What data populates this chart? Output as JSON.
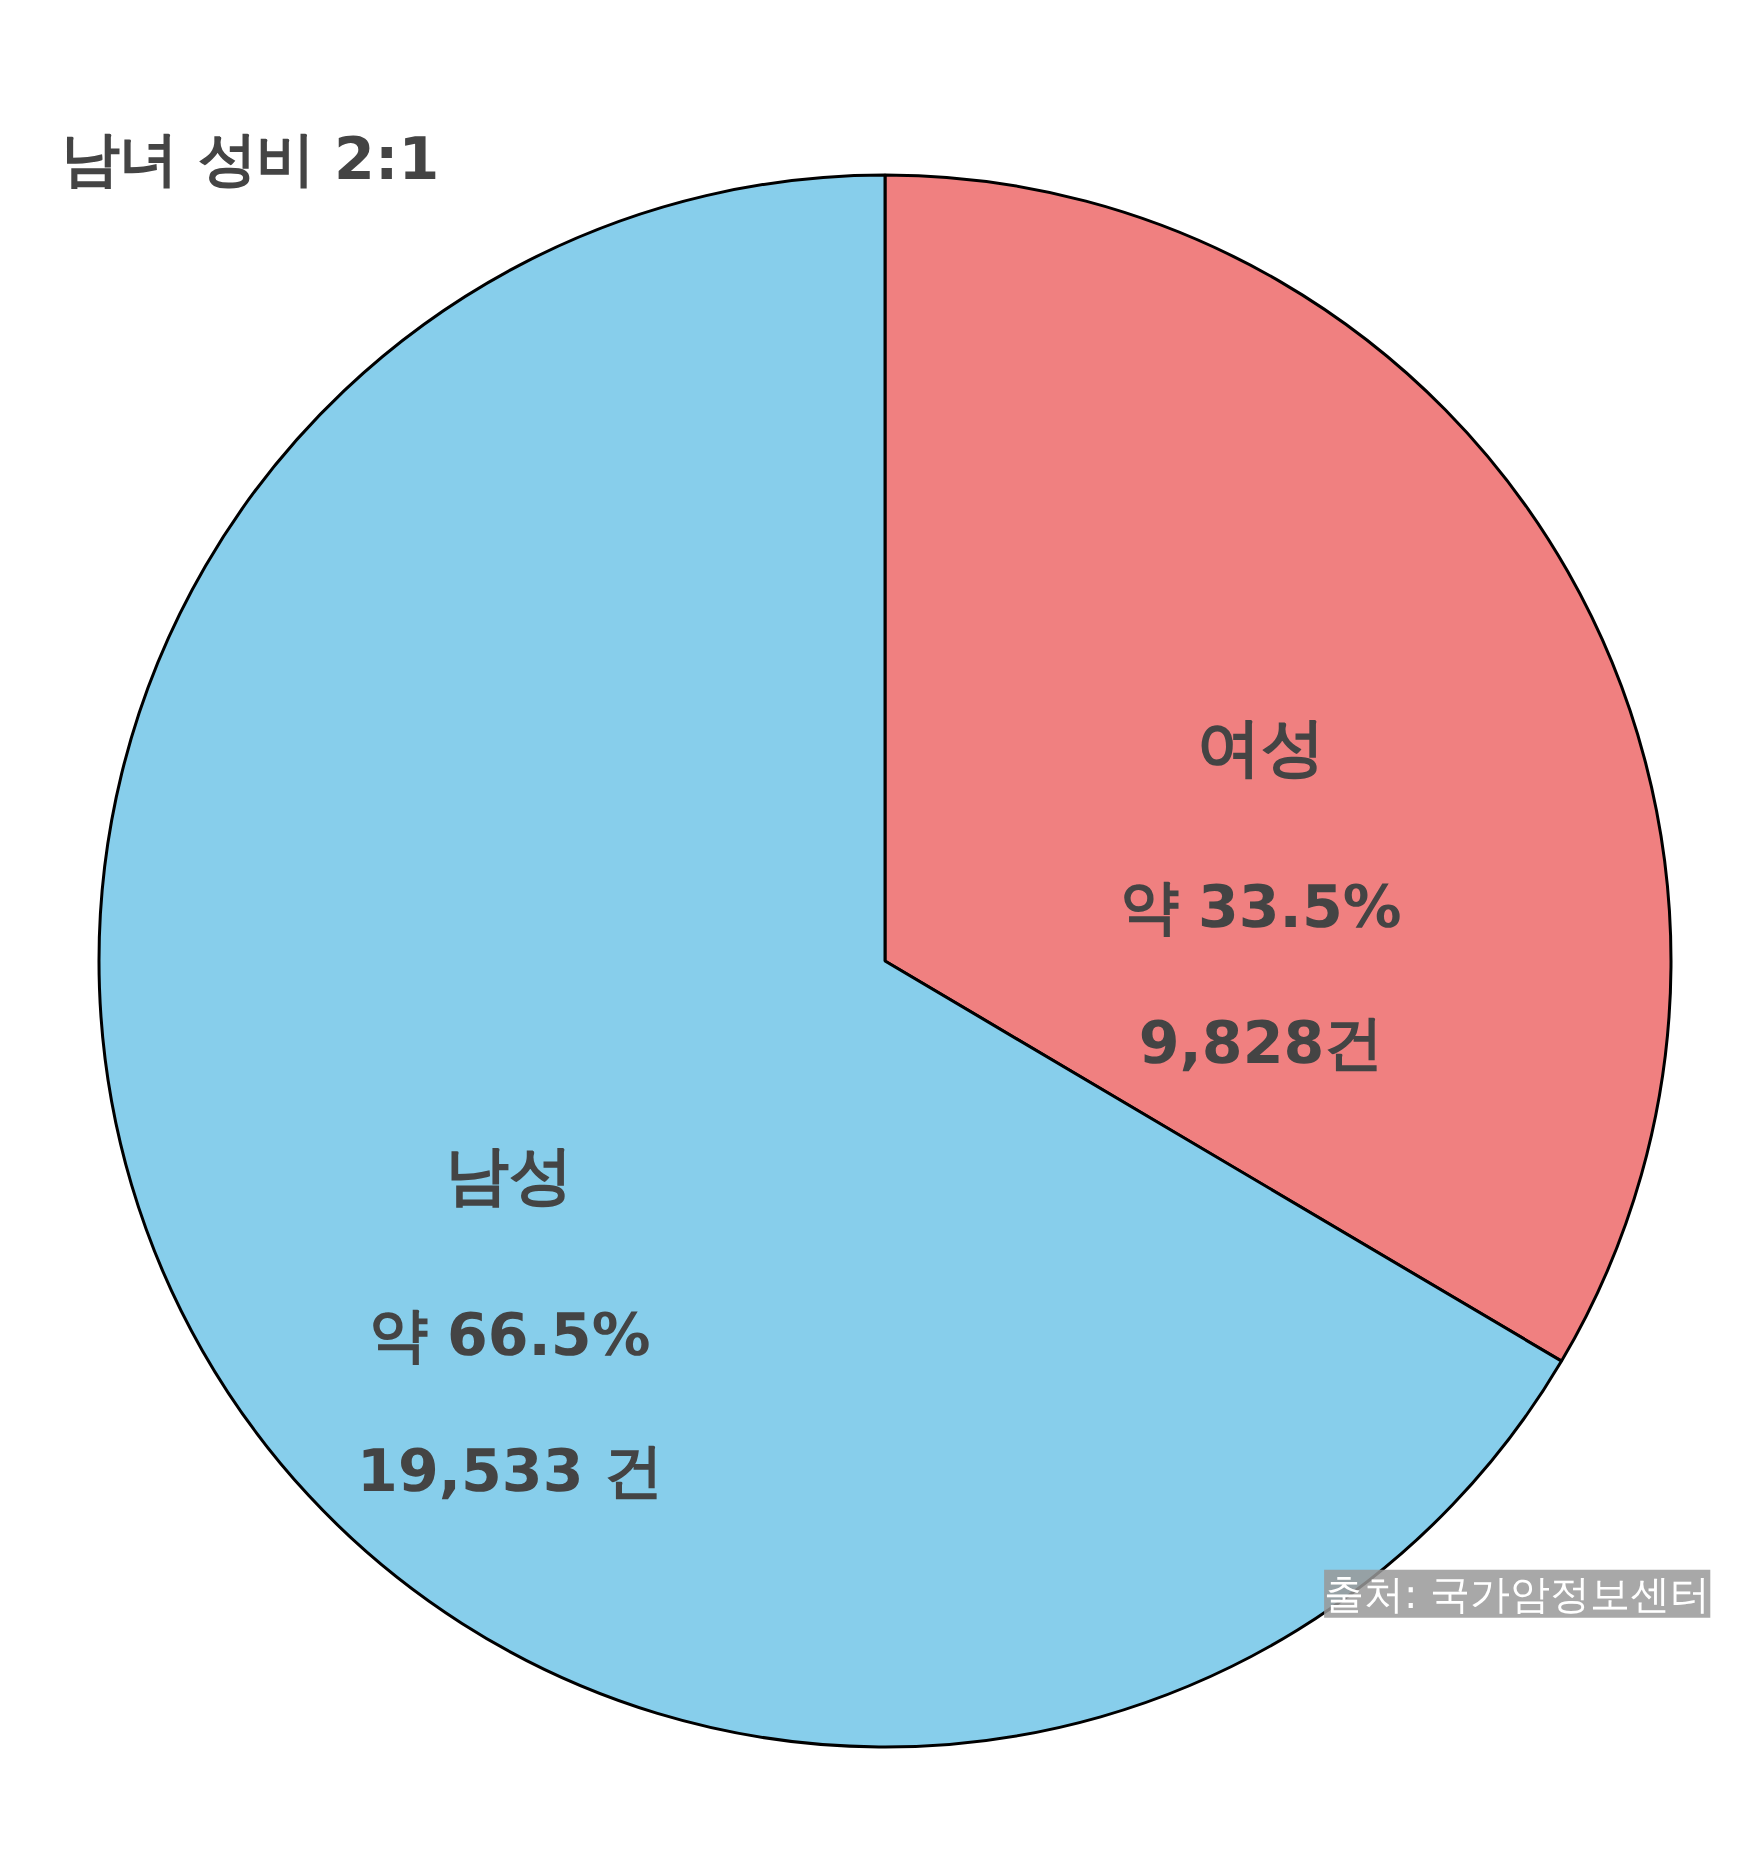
{
  "chart_data": {
    "type": "pie",
    "title": "남녀 성비 2:1",
    "categories": [
      "여성",
      "남성"
    ],
    "values": [
      33.5,
      66.5
    ],
    "colors": [
      "#f08080",
      "#87ceeb"
    ],
    "value_labels": [
      "약 33.5%\n9,828건",
      "약 66.5%\n19,533 건"
    ],
    "annotations": [
      "출처: 국가암정보센터"
    ]
  }
}
